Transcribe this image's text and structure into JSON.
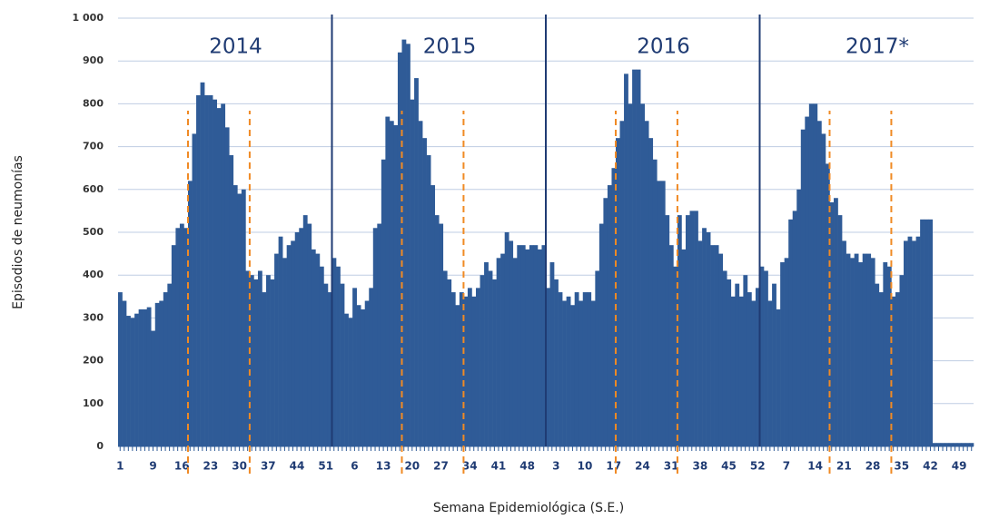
{
  "chart_data": {
    "type": "bar",
    "y_label": "Episodios de neumonías",
    "x_label": "Semana Epidemiológica (S.E.)",
    "annotations": [
      "2014",
      "2015",
      "2016",
      "2017*"
    ],
    "color": "#2f5b97",
    "grid": true,
    "ylim": [
      0,
      1000
    ],
    "yticks": [
      0,
      100,
      200,
      300,
      400,
      500,
      600,
      700,
      800,
      900,
      {
        "value": 1000,
        "label": "1 000"
      }
    ],
    "categories": [
      "1",
      null,
      null,
      null,
      null,
      null,
      null,
      null,
      "9",
      null,
      null,
      null,
      null,
      null,
      null,
      "16",
      null,
      null,
      null,
      null,
      null,
      null,
      "23",
      null,
      null,
      null,
      null,
      null,
      null,
      "30",
      null,
      null,
      null,
      null,
      null,
      null,
      "37",
      null,
      null,
      null,
      null,
      null,
      null,
      "44",
      null,
      null,
      null,
      null,
      null,
      null,
      "51",
      null,
      null,
      null,
      null,
      null,
      null,
      "6",
      null,
      null,
      null,
      null,
      null,
      null,
      "13",
      null,
      null,
      null,
      null,
      null,
      null,
      "20",
      null,
      null,
      null,
      null,
      null,
      null,
      "27",
      null,
      null,
      null,
      null,
      null,
      null,
      "34",
      null,
      null,
      null,
      null,
      null,
      null,
      "41",
      null,
      null,
      null,
      null,
      null,
      null,
      "48",
      null,
      null,
      null,
      null,
      null,
      null,
      "3",
      null,
      null,
      null,
      null,
      null,
      null,
      "10",
      null,
      null,
      null,
      null,
      null,
      null,
      "17",
      null,
      null,
      null,
      null,
      null,
      null,
      "24",
      null,
      null,
      null,
      null,
      null,
      null,
      "31",
      null,
      null,
      null,
      null,
      null,
      null,
      "38",
      null,
      null,
      null,
      null,
      null,
      null,
      "45",
      null,
      null,
      null,
      null,
      null,
      null,
      "52",
      null,
      null,
      null,
      null,
      null,
      null,
      "7",
      null,
      null,
      null,
      null,
      null,
      null,
      "14",
      null,
      null,
      null,
      null,
      null,
      null,
      "21",
      null,
      null,
      null,
      null,
      null,
      null,
      "28",
      null,
      null,
      null,
      null,
      null,
      null,
      "35",
      null,
      null,
      null,
      null,
      null,
      null,
      "42",
      null,
      null,
      null,
      null,
      null,
      null,
      "49",
      null,
      null,
      null
    ],
    "values": [
      360,
      340,
      305,
      300,
      310,
      320,
      320,
      325,
      270,
      335,
      340,
      360,
      380,
      470,
      510,
      520,
      510,
      620,
      730,
      820,
      850,
      820,
      820,
      810,
      790,
      800,
      745,
      680,
      610,
      590,
      600,
      410,
      400,
      390,
      410,
      360,
      400,
      390,
      450,
      490,
      440,
      470,
      480,
      500,
      510,
      540,
      520,
      460,
      450,
      420,
      380,
      360,
      440,
      420,
      380,
      310,
      300,
      370,
      330,
      320,
      340,
      370,
      510,
      520,
      670,
      770,
      760,
      750,
      920,
      950,
      940,
      810,
      860,
      760,
      720,
      680,
      610,
      540,
      520,
      410,
      390,
      360,
      330,
      360,
      350,
      370,
      350,
      370,
      400,
      430,
      410,
      390,
      440,
      450,
      500,
      480,
      440,
      470,
      470,
      460,
      470,
      470,
      460,
      470,
      370,
      430,
      390,
      360,
      340,
      350,
      330,
      360,
      340,
      360,
      360,
      340,
      410,
      520,
      580,
      610,
      650,
      720,
      760,
      870,
      800,
      880,
      880,
      800,
      760,
      720,
      670,
      620,
      620,
      540,
      470,
      420,
      540,
      460,
      540,
      550,
      550,
      480,
      510,
      500,
      470,
      470,
      450,
      410,
      390,
      350,
      380,
      350,
      400,
      360,
      340,
      370,
      420,
      410,
      340,
      380,
      320,
      430,
      440,
      530,
      550,
      600,
      740,
      770,
      800,
      800,
      760,
      730,
      660,
      570,
      580,
      540,
      480,
      450,
      440,
      450,
      430,
      450,
      450,
      440,
      380,
      360,
      430,
      420,
      350,
      360,
      400,
      480,
      490,
      480,
      490,
      530,
      530,
      530,
      8,
      8,
      8,
      8,
      8,
      8,
      8,
      8,
      8,
      8
    ]
  }
}
